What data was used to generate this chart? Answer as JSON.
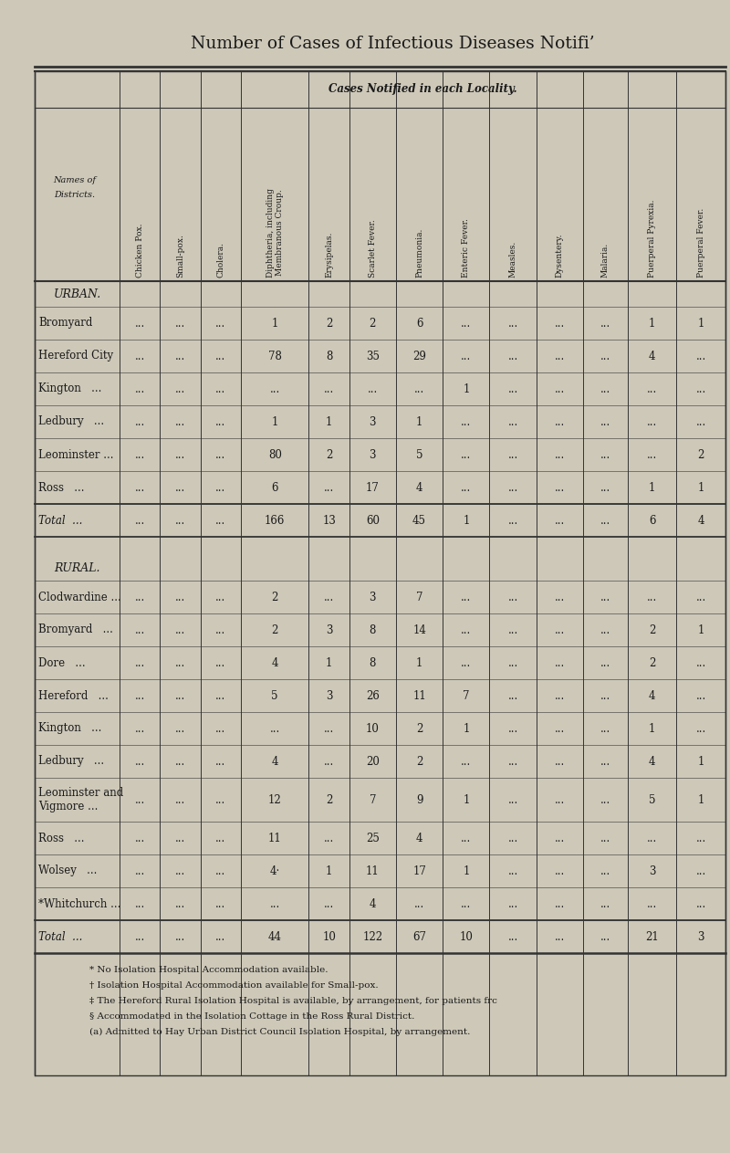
{
  "title": "Number of Cases of Infectious Diseases Notifi’",
  "subtitle": "Cases Notified in each Locality.",
  "col_headers": [
    "Names of\nDistricts.",
    "Chicken Pox.",
    "Small-pox.",
    "Cholera.",
    "Diphtheria, including\nMembranous Croup.",
    "Erysipelas.",
    "Scarlet Fever.",
    "Pneumonia.",
    "Enteric Fever.",
    "Measles.",
    "Dysentery.",
    "Malaria.",
    "Puerperal Pyrexia.",
    "Puerperal Fever."
  ],
  "section_urban": "URBAN.",
  "section_rural": "RURAL.",
  "urban_rows": [
    [
      "Bromyard",
      "...",
      "...",
      "...",
      "1",
      "2",
      "2",
      "6",
      "...",
      "...",
      "...",
      "...",
      "1",
      "1"
    ],
    [
      "Hereford City",
      "...",
      "...",
      "...",
      "78",
      "8",
      "35",
      "29",
      "...",
      "...",
      "...",
      "...",
      "4",
      "..."
    ],
    [
      "Kington   ...",
      "...",
      "...",
      "...",
      "...",
      "...",
      "...",
      "...",
      "1",
      "...",
      "...",
      "...",
      "...",
      "..."
    ],
    [
      "Ledbury   ...",
      "...",
      "...",
      "...",
      "1",
      "1",
      "3",
      "1",
      "...",
      "...",
      "...",
      "...",
      "...",
      "..."
    ],
    [
      "Leominster ...",
      "...",
      "...",
      "...",
      "80",
      "2",
      "3",
      "5",
      "...",
      "...",
      "...",
      "...",
      "...",
      "2"
    ],
    [
      "Ross   ...",
      "...",
      "...",
      "...",
      "6",
      "...",
      "17",
      "4",
      "...",
      "...",
      "...",
      "...",
      "1",
      "1"
    ]
  ],
  "urban_total": [
    "Total  ...",
    "...",
    "...",
    "...",
    "166",
    "13",
    "60",
    "45",
    "1",
    "...",
    "...",
    "...",
    "6",
    "4"
  ],
  "rural_rows": [
    [
      "Clodwardine ...",
      "...",
      "...",
      "...",
      "2",
      "...",
      "3",
      "7",
      "...",
      "...",
      "...",
      "...",
      "...",
      "..."
    ],
    [
      "Bromyard   ...",
      "...",
      "...",
      "...",
      "2",
      "3",
      "8",
      "14",
      "...",
      "...",
      "...",
      "...",
      "2",
      "1"
    ],
    [
      "Dore   ...",
      "...",
      "...",
      "...",
      "4",
      "1",
      "8",
      "1",
      "...",
      "...",
      "...",
      "...",
      "2",
      "..."
    ],
    [
      "Hereford   ...",
      "...",
      "...",
      "...",
      "5",
      "3",
      "26",
      "11",
      "7",
      "...",
      "...",
      "...",
      "4",
      "..."
    ],
    [
      "Kington   ...",
      "...",
      "...",
      "...",
      "...",
      "...",
      "10",
      "2",
      "1",
      "...",
      "...",
      "...",
      "1",
      "..."
    ],
    [
      "Ledbury   ...",
      "...",
      "...",
      "...",
      "4",
      "...",
      "20",
      "2",
      "...",
      "...",
      "...",
      "...",
      "4",
      "1"
    ],
    [
      "Leominster and\nVigmore ...",
      "...",
      "...",
      "...",
      "12",
      "2",
      "7",
      "9",
      "1",
      "...",
      "...",
      "...",
      "5",
      "1"
    ],
    [
      "Ross   ...",
      "...",
      "...",
      "...",
      "11",
      "...",
      "25",
      "4",
      "...",
      "...",
      "...",
      "...",
      "...",
      "..."
    ],
    [
      "Wolsey   ...",
      "...",
      "...",
      "...",
      "4·",
      "1",
      "11",
      "17",
      "1",
      "...",
      "...",
      "...",
      "3",
      "..."
    ],
    [
      "*Whitchurch ...",
      "...",
      "...",
      "...",
      "...",
      "...",
      "4",
      "...",
      "...",
      "...",
      "...",
      "...",
      "...",
      "..."
    ]
  ],
  "rural_total": [
    "Total  ...",
    "...",
    "...",
    "...",
    "44",
    "10",
    "122",
    "67",
    "10",
    "...",
    "...",
    "...",
    "21",
    "3"
  ],
  "footnotes": [
    "* No Isolation Hospital Accommodation available.",
    "† Isolation Hospital Accommodation available for Small-pox.",
    "‡ The Hereford Rural Isolation Hospital is available, by arrangement, for patients frc",
    "§ Accommodated in the Isolation Cottage in the Ross Rural District.",
    "(a) Admitted to Hay Urban District Council Isolation Hospital, by arrangement."
  ],
  "bg_color": "#cdc8b8",
  "text_color": "#1a1a1a",
  "col_weights": [
    2.0,
    0.95,
    0.95,
    0.95,
    1.6,
    0.95,
    1.1,
    1.1,
    1.1,
    1.1,
    1.1,
    1.05,
    1.15,
    1.15
  ]
}
